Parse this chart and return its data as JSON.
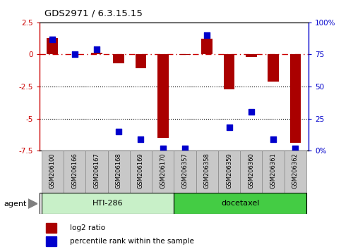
{
  "title": "GDS2971 / 6.3.15.15",
  "samples": [
    "GSM206100",
    "GSM206166",
    "GSM206167",
    "GSM206168",
    "GSM206169",
    "GSM206170",
    "GSM206357",
    "GSM206358",
    "GSM206359",
    "GSM206360",
    "GSM206361",
    "GSM206362"
  ],
  "log2_ratio": [
    1.3,
    0.05,
    0.15,
    -0.7,
    -1.1,
    -6.5,
    -0.05,
    1.25,
    -2.7,
    -0.2,
    -2.1,
    -6.9
  ],
  "percentile_rank": [
    87,
    75,
    79,
    15,
    9,
    2,
    2,
    90,
    18,
    30,
    9,
    2
  ],
  "groups": [
    {
      "label": "HTI-286",
      "start": 0,
      "end": 5,
      "color": "#C8F0C8"
    },
    {
      "label": "docetaxel",
      "start": 6,
      "end": 11,
      "color": "#44CC44"
    }
  ],
  "ylim_left": [
    -7.5,
    2.5
  ],
  "ylim_right": [
    0,
    100
  ],
  "hline_zero_color": "#CC0000",
  "hline_zero_style": "-.",
  "hline_dotted_values": [
    -2.5,
    -5.0
  ],
  "hline_dotted_color": "black",
  "hline_dotted_style": ":",
  "bar_color": "#AA0000",
  "dot_color": "#0000CC",
  "right_yticks": [
    0,
    25,
    50,
    75,
    100
  ],
  "right_yticklabels": [
    "0%",
    "25",
    "50",
    "75",
    "100%"
  ],
  "left_yticks": [
    2.5,
    0,
    -2.5,
    -5.0,
    -7.5
  ],
  "left_yticklabels": [
    "2.5",
    "0",
    "-2.5",
    "-5",
    "-7.5"
  ],
  "agent_label": "agent",
  "legend_log2": "log2 ratio",
  "legend_pct": "percentile rank within the sample",
  "bar_width": 0.5,
  "dot_size": 28,
  "sample_box_color": "#C8C8C8",
  "sample_box_edge": "#888888"
}
